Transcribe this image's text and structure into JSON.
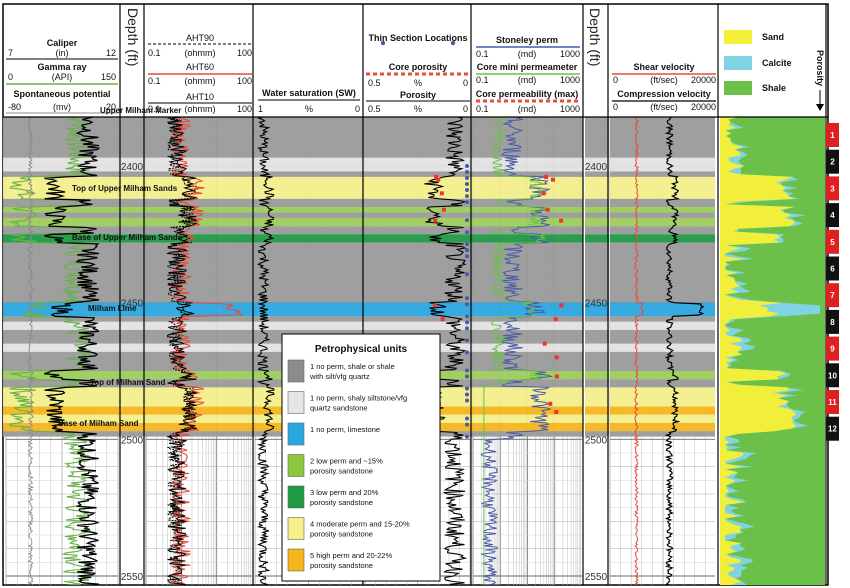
{
  "headers": {
    "track1": [
      {
        "name": "Caliper",
        "unit": "(in)",
        "min": "7",
        "max": "12",
        "color": "#000000"
      },
      {
        "name": "Gamma ray",
        "unit": "(API)",
        "min": "0",
        "max": "150",
        "color": "#6ab04c"
      },
      {
        "name": "Spontaneous potential",
        "unit": "(mv)",
        "min": "-80",
        "max": "20",
        "color": "#888888"
      }
    ],
    "depth_title": "Depth (ft)",
    "track2": [
      {
        "name": "AHT90",
        "unit": "(ohmm)",
        "min": "0.1",
        "max": "100",
        "color": "#000000"
      },
      {
        "name": "AHT60",
        "unit": "(ohmm)",
        "min": "0.1",
        "max": "100",
        "color": "#e74c3c"
      },
      {
        "name": "AHT10",
        "unit": "(ohmm)",
        "min": "0.1",
        "max": "100",
        "color": "#000000"
      }
    ],
    "track3": {
      "name": "Water saturation (SW)",
      "min": "1",
      "mid": "%",
      "max": "0"
    },
    "track4": [
      {
        "name": "Thin Section Locations"
      },
      {
        "name": "Core porosity",
        "min": "0.5",
        "mid": "%",
        "max": "0"
      },
      {
        "name": "Porosity",
        "min": "0.5",
        "mid": "%",
        "max": "0"
      }
    ],
    "track5": [
      {
        "name": "Stoneley perm",
        "unit": "(md)",
        "min": "0.1",
        "max": "1000"
      },
      {
        "name": "Core mini permeameter",
        "unit": "(md)",
        "min": "0.1",
        "max": "1000"
      },
      {
        "name": "Core permeability (max)",
        "unit": "(md)",
        "min": "0.1",
        "max": "1000"
      }
    ],
    "track6": [
      {
        "name": "Shear velocity",
        "unit": "(ft/sec)",
        "min": "0",
        "max": "20000"
      },
      {
        "name": "Compression velocity",
        "unit": "(ft/sec)",
        "min": "0",
        "max": "20000"
      }
    ],
    "lith_legend": [
      {
        "label": "Sand",
        "color": "#f2ef3a"
      },
      {
        "label": "Calcite",
        "color": "#7fd3e3"
      },
      {
        "label": "Shale",
        "color": "#6cc04a"
      }
    ],
    "porosity_label": "Porosity"
  },
  "depth_ticks": [
    "2400",
    "2450",
    "2500",
    "2550"
  ],
  "markers": [
    {
      "label": "Upper Milham Marker"
    },
    {
      "label": "Top of Upper Milham Sands"
    },
    {
      "label": "Base of Upper Milham Sands"
    },
    {
      "label": "Milham Lime"
    },
    {
      "label": "Top of Milham Sand"
    },
    {
      "label": "Base of Milham Sand"
    }
  ],
  "zones": [
    "1",
    "2",
    "3",
    "4",
    "5",
    "6",
    "7",
    "8",
    "9",
    "10",
    "11",
    "12"
  ],
  "legend": {
    "title": "Petrophysical units",
    "items": [
      {
        "line1": "1 no perm, shale or shale",
        "line2": "with silt/vfg quartz",
        "color": "#8c8c8c"
      },
      {
        "line1": "1 no perm, shaly siltstone/vfg",
        "line2": "quartz sandstone",
        "color": "#e6e6e6"
      },
      {
        "line1": "1 no perm, limestone",
        "line2": "",
        "color": "#2aa7e0"
      },
      {
        "line1": "2 low perm and ~15%",
        "line2": "porosity sandstone",
        "color": "#8dc63f"
      },
      {
        "line1": "3 low perm and 20%",
        "line2": "porosity sandstone",
        "color": "#1e9a44"
      },
      {
        "line1": "4 moderate perm and 15-20%",
        "line2": "porosity sandstone",
        "color": "#f6f08a"
      },
      {
        "line1": "5 high perm and 20-22%",
        "line2": "porosity sandstone",
        "color": "#f5b51c"
      }
    ]
  }
}
